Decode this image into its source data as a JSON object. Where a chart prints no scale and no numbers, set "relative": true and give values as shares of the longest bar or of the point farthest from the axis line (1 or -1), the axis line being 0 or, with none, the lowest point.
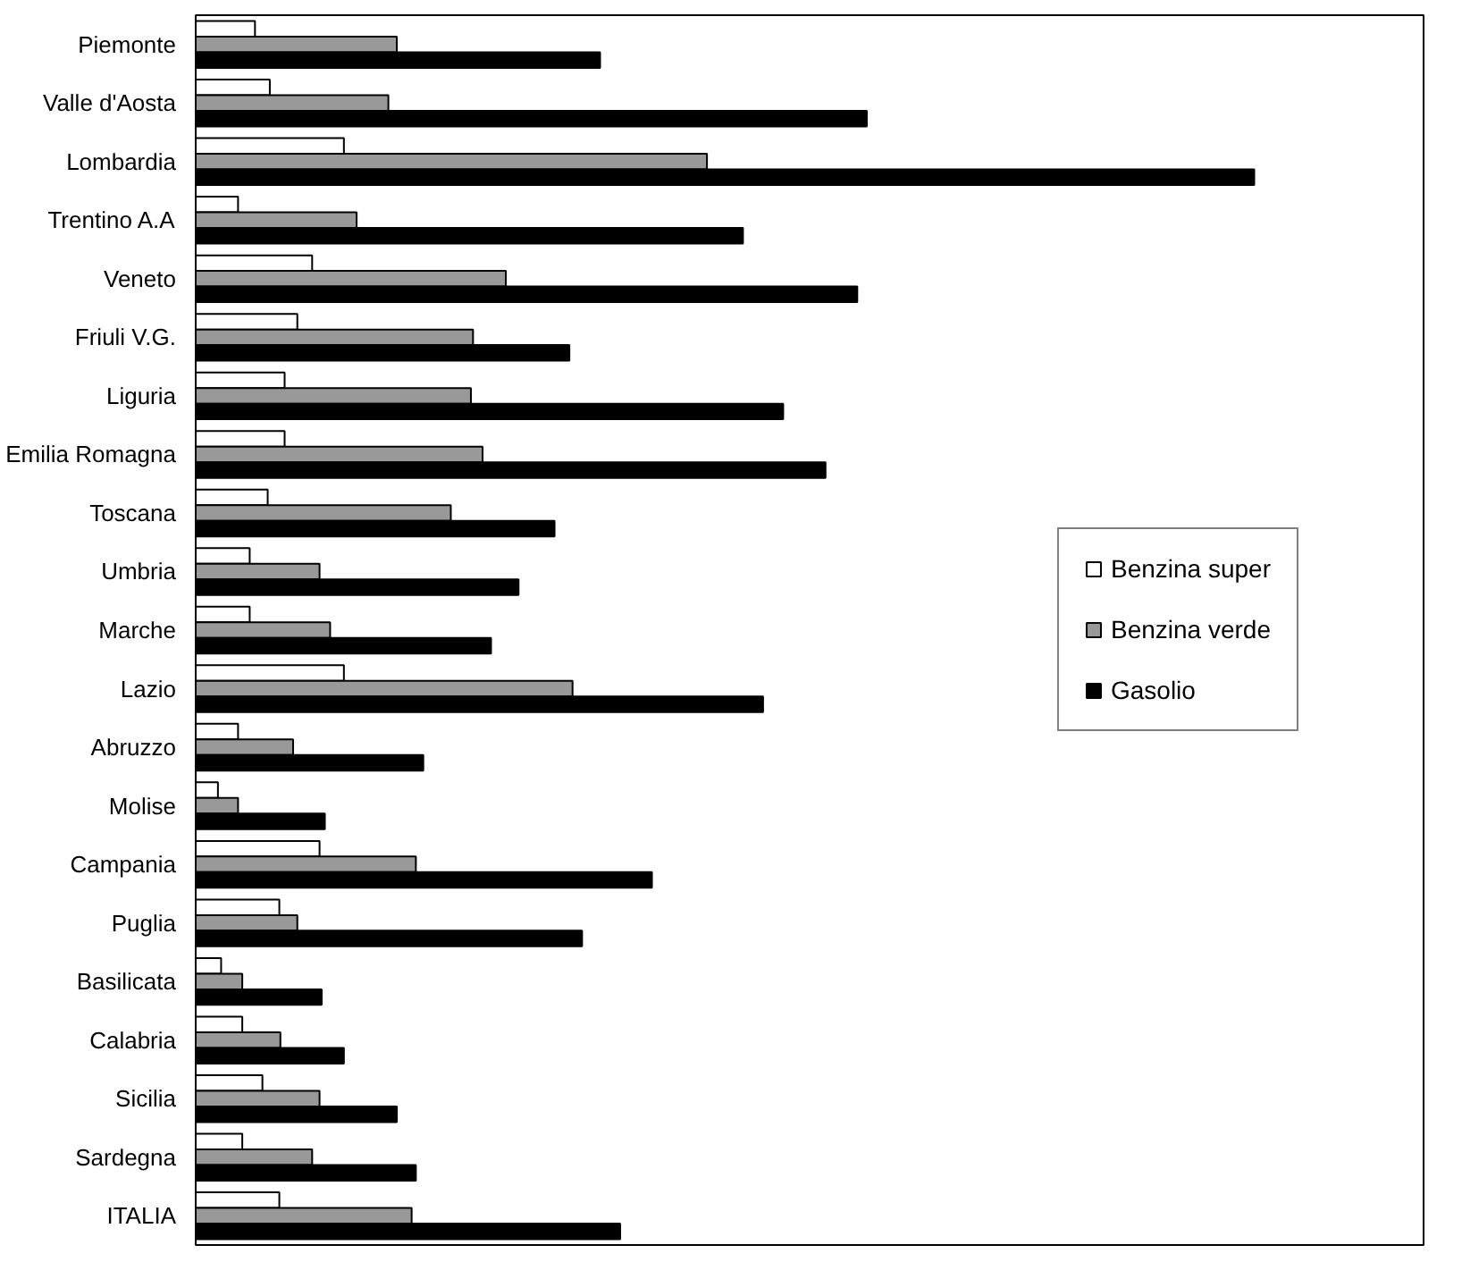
{
  "chart_data": {
    "type": "bar",
    "orientation": "horizontal",
    "relative": true,
    "legend": "right",
    "categories": [
      "Piemonte",
      "Valle d'Aosta",
      "Lombardia",
      "Trentino A.A",
      "Veneto",
      "Friuli V.G.",
      "Liguria",
      "Emilia Romagna",
      "Toscana",
      "Umbria",
      "Marche",
      "Lazio",
      "Abruzzo",
      "Molise",
      "Campania",
      "Puglia",
      "Basilicata",
      "Calabria",
      "Sicilia",
      "Sardegna",
      "ITALIA"
    ],
    "series": [
      {
        "name": "Benzina super",
        "color": "#ffffff",
        "values": [
          0.056,
          0.07,
          0.14,
          0.04,
          0.11,
          0.096,
          0.084,
          0.084,
          0.068,
          0.051,
          0.051,
          0.14,
          0.04,
          0.021,
          0.117,
          0.079,
          0.024,
          0.044,
          0.063,
          0.044,
          0.079
        ]
      },
      {
        "name": "Benzina verde",
        "color": "#999999",
        "values": [
          0.19,
          0.182,
          0.483,
          0.152,
          0.293,
          0.262,
          0.26,
          0.271,
          0.241,
          0.117,
          0.127,
          0.356,
          0.092,
          0.04,
          0.208,
          0.096,
          0.044,
          0.08,
          0.117,
          0.11,
          0.204
        ]
      },
      {
        "name": "Gasolio",
        "color": "#000000",
        "values": [
          0.382,
          0.634,
          1,
          0.517,
          0.625,
          0.353,
          0.555,
          0.595,
          0.339,
          0.305,
          0.279,
          0.536,
          0.215,
          0.122,
          0.431,
          0.365,
          0.119,
          0.14,
          0.19,
          0.208,
          0.401
        ]
      }
    ]
  }
}
